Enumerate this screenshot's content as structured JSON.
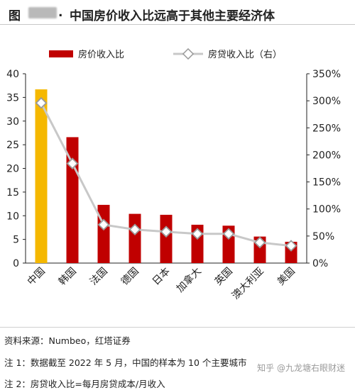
{
  "header": {
    "prefix": "图",
    "dot": ".",
    "title": "中国房价收入比远高于其他主要经济体"
  },
  "chart_data": {
    "type": "bar",
    "categories": [
      "中国",
      "韩国",
      "法国",
      "德国",
      "日本",
      "加拿大",
      "英国",
      "澳大利亚",
      "美国"
    ],
    "series": [
      {
        "name": "房价收入比",
        "type": "bar",
        "axis": "left",
        "values": [
          36.7,
          26.6,
          12.3,
          10.4,
          10.2,
          8.1,
          7.9,
          5.6,
          4.5
        ]
      },
      {
        "name": "房贷收入比（右）",
        "type": "line",
        "axis": "right",
        "values": [
          296,
          184,
          71,
          62,
          58,
          54,
          54,
          38,
          32
        ]
      }
    ],
    "highlight_index": 0,
    "ylim_left": [
      0,
      40
    ],
    "yticks_left": [
      "0",
      "5",
      "10",
      "15",
      "20",
      "25",
      "30",
      "35",
      "40"
    ],
    "ylim_right": [
      0,
      350
    ],
    "yticks_right": [
      "0%",
      "50%",
      "100%",
      "150%",
      "200%",
      "250%",
      "300%",
      "350%"
    ],
    "legend_position": "top",
    "grid": false,
    "colors": {
      "bar": "#c00000",
      "highlight_bar": "#f5b800",
      "line": "#c8c8c8",
      "marker_fill": "#ffffff",
      "marker_stroke": "#9a9a9a"
    }
  },
  "notes": [
    "资料来源：Numbeo，红塔证券",
    "注 1：数据截至 2022 年 5 月，中国的样本为 10 个主要城市",
    "注 2：房贷收入比=每月房贷成本/月收入"
  ],
  "watermark": "知乎 @九龙塘右眼财迷"
}
